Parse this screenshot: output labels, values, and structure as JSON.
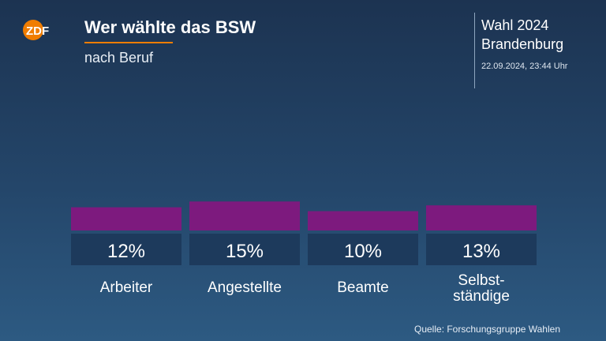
{
  "header": {
    "logo_text": "ZDF",
    "title": "Wer wählte das BSW",
    "subtitle": "nach Beruf",
    "election_line1": "Wahl 2024",
    "election_line2": "Brandenburg",
    "timestamp": "22.09.2024, 23:44 Uhr"
  },
  "chart_data": {
    "type": "bar",
    "title": "Wer wählte das BSW",
    "subtitle": "nach Beruf",
    "categories": [
      [
        "Arbeiter"
      ],
      [
        "Angestellte"
      ],
      [
        "Beamte"
      ],
      [
        "Selbst-",
        "ständige"
      ]
    ],
    "values": [
      12,
      15,
      10,
      13
    ],
    "value_labels": [
      "12%",
      "15%",
      "10%",
      "13%"
    ],
    "unit": "%",
    "bar_color": "#7d1a7e",
    "label_box_color": "#1d3a5c",
    "grid": false,
    "legend": "none"
  },
  "footer": {
    "source": "Quelle: Forschungsgruppe Wahlen"
  },
  "colors": {
    "accent": "#f07d00",
    "bar": "#7d1a7e"
  }
}
